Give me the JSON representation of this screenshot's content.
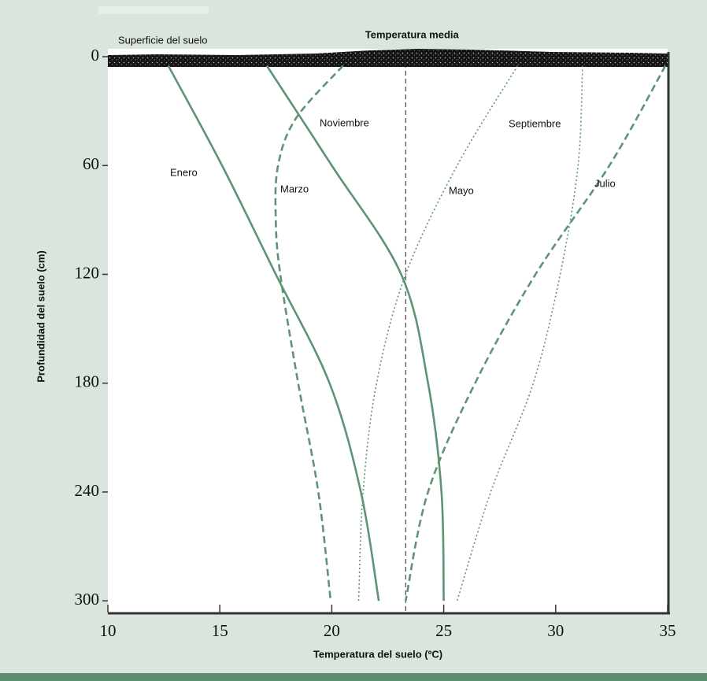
{
  "chart_data": {
    "type": "line",
    "x_label": "Temperatura del suelo (ºC)",
    "y_label": "Profundidad del suelo (cm)",
    "xlim": [
      10,
      35
    ],
    "xticks": [
      10,
      15,
      20,
      25,
      30,
      35
    ],
    "ylim": [
      0,
      306
    ],
    "yticks": [
      0,
      60,
      120,
      180,
      240,
      300
    ],
    "annotations": [
      {
        "text": "Superficie del suelo"
      },
      {
        "text": "Temperatura media",
        "x": 23.3
      }
    ],
    "series": [
      {
        "name": "Enero",
        "color": "#5e9474",
        "linestyle": "solid",
        "x": [
          12.7,
          15.1,
          17.5,
          19.9,
          21.3,
          22.1
        ],
        "values": [
          5,
          60,
          120,
          180,
          240,
          300
        ]
      },
      {
        "name": "Noviembre",
        "color": "#5e9474",
        "linestyle": "solid",
        "x": [
          17.1,
          20.0,
          23.1,
          24.3,
          24.9,
          25.0
        ],
        "values": [
          5,
          60,
          120,
          180,
          240,
          300
        ]
      },
      {
        "name": "Marzo",
        "color": "#5e9474",
        "linestyle": "dashed",
        "x": [
          20.5,
          18.4,
          17.6,
          17.5,
          17.7,
          18.5,
          19.4,
          19.95
        ],
        "values": [
          5,
          34,
          60,
          90,
          120,
          180,
          240,
          300
        ]
      },
      {
        "name": "Mayo",
        "color": "#5e9474",
        "linestyle": "dotted",
        "x": [
          28.3,
          25.6,
          23.3,
          22.0,
          21.4,
          21.2
        ],
        "values": [
          5,
          60,
          120,
          180,
          240,
          300
        ]
      },
      {
        "name": "Septiembre",
        "color": "#5e9474",
        "linestyle": "dotted",
        "x": [
          31.2,
          31.0,
          30.2,
          29.0,
          27.1,
          25.6
        ],
        "values": [
          5,
          60,
          120,
          180,
          240,
          300
        ]
      },
      {
        "name": "Julio",
        "color": "#5e9474",
        "linestyle": "dashed",
        "x": [
          34.9,
          32.4,
          29.1,
          26.4,
          24.3,
          23.3
        ],
        "values": [
          5,
          60,
          120,
          180,
          240,
          300
        ]
      }
    ]
  }
}
